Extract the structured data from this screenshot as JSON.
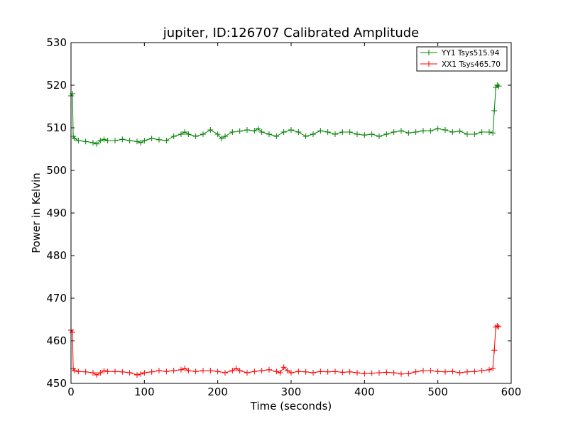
{
  "chart_data": {
    "type": "line",
    "title": "jupiter, ID:126707 Calibrated Amplitude",
    "xlabel": "Time (seconds)",
    "ylabel": "Power in Kelvin",
    "xlim": [
      0,
      600
    ],
    "ylim": [
      450,
      530
    ],
    "xticks": [
      0,
      100,
      200,
      300,
      400,
      500,
      600
    ],
    "yticks": [
      450,
      460,
      470,
      480,
      490,
      500,
      510,
      520,
      530
    ],
    "grid": false,
    "legend_position": "top-right",
    "marker": "+",
    "series": [
      {
        "name": "YY1 Tsys515.94",
        "color": "#008000",
        "x": [
          0,
          2,
          3,
          5,
          10,
          20,
          30,
          35,
          40,
          45,
          50,
          60,
          70,
          80,
          90,
          95,
          100,
          110,
          120,
          130,
          140,
          150,
          155,
          160,
          170,
          180,
          190,
          200,
          205,
          210,
          220,
          230,
          240,
          250,
          255,
          260,
          270,
          280,
          290,
          300,
          310,
          320,
          330,
          340,
          350,
          360,
          370,
          380,
          390,
          400,
          410,
          420,
          430,
          440,
          450,
          460,
          470,
          480,
          490,
          500,
          510,
          520,
          530,
          540,
          550,
          560,
          570,
          575,
          577,
          579,
          581,
          583
        ],
        "values": [
          517.5,
          518.0,
          508.0,
          507.5,
          507.0,
          506.8,
          506.5,
          506.2,
          507.0,
          507.3,
          507.0,
          507.0,
          507.3,
          507.0,
          506.8,
          506.5,
          507.0,
          507.5,
          507.2,
          507.0,
          508.0,
          508.5,
          509.0,
          508.5,
          508.0,
          508.5,
          509.5,
          508.5,
          507.5,
          508.0,
          509.0,
          509.2,
          509.5,
          509.3,
          509.8,
          509.0,
          508.5,
          508.0,
          509.0,
          509.5,
          509.0,
          508.0,
          508.5,
          509.3,
          509.0,
          508.5,
          509.0,
          509.0,
          508.5,
          508.3,
          508.5,
          508.0,
          508.5,
          509.0,
          509.3,
          508.8,
          509.0,
          509.3,
          509.3,
          509.8,
          509.5,
          509.0,
          509.2,
          508.5,
          508.5,
          509.0,
          509.0,
          508.8,
          514.0,
          519.5,
          520.0,
          519.8
        ]
      },
      {
        "name": "XX1 Tsys465.70",
        "color": "#ff0000",
        "x": [
          0,
          2,
          3,
          5,
          10,
          20,
          30,
          35,
          40,
          45,
          50,
          60,
          70,
          80,
          90,
          95,
          100,
          110,
          120,
          130,
          140,
          150,
          155,
          160,
          170,
          180,
          190,
          200,
          210,
          220,
          225,
          230,
          240,
          250,
          260,
          270,
          280,
          285,
          290,
          295,
          300,
          310,
          320,
          330,
          340,
          350,
          360,
          370,
          380,
          390,
          400,
          410,
          420,
          430,
          440,
          450,
          460,
          470,
          480,
          490,
          500,
          510,
          520,
          530,
          540,
          550,
          560,
          570,
          575,
          577,
          579,
          581,
          583
        ],
        "values": [
          462.5,
          462.0,
          453.5,
          453.0,
          452.8,
          452.7,
          452.5,
          452.0,
          452.5,
          453.0,
          452.8,
          452.8,
          452.7,
          452.5,
          452.0,
          452.2,
          452.5,
          452.7,
          453.0,
          452.8,
          453.0,
          453.2,
          453.5,
          453.0,
          452.8,
          453.0,
          453.0,
          452.8,
          452.5,
          453.0,
          453.5,
          453.0,
          452.5,
          452.8,
          453.0,
          453.2,
          452.8,
          452.5,
          453.8,
          453.0,
          452.5,
          452.8,
          452.7,
          452.5,
          452.8,
          452.7,
          452.8,
          452.6,
          452.7,
          452.5,
          452.3,
          452.4,
          452.5,
          452.6,
          452.5,
          452.2,
          452.3,
          452.7,
          453.0,
          453.0,
          452.8,
          452.7,
          452.8,
          452.5,
          452.7,
          452.8,
          453.0,
          453.2,
          453.5,
          457.8,
          463.2,
          463.5,
          463.3
        ]
      }
    ]
  }
}
